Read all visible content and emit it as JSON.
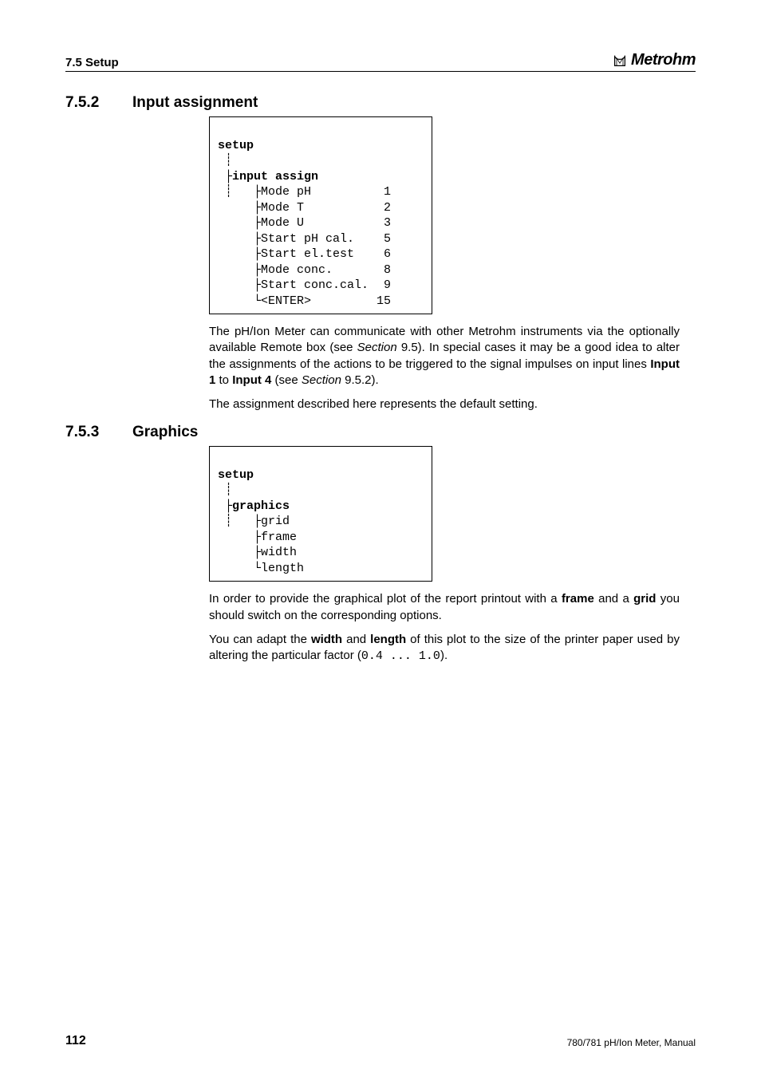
{
  "header": {
    "left": "7.5 Setup",
    "brand": "Metrohm"
  },
  "sections": [
    {
      "num": "7.5.2",
      "title": "Input assignment",
      "tree": {
        "root": "setup",
        "branch": "input assign",
        "items": [
          {
            "label": "Mode pH",
            "val": "1"
          },
          {
            "label": "Mode T",
            "val": "2"
          },
          {
            "label": "Mode U",
            "val": "3"
          },
          {
            "label": "Start pH cal.",
            "val": "5"
          },
          {
            "label": "Start el.test",
            "val": "6"
          },
          {
            "label": "Mode conc.",
            "val": "8"
          },
          {
            "label": "Start conc.cal.",
            "val": "9"
          },
          {
            "label": "<ENTER>",
            "val": "15"
          }
        ]
      },
      "paras": [
        [
          {
            "t": "The pH/Ion Meter can communicate with other Metrohm instruments via the optionally available Remote box (see "
          },
          {
            "t": "Section",
            "cls": "italic"
          },
          {
            "t": " 9.5). In special cases it may be a good idea to alter the assignments of the actions to be triggered to the signal impulses on input lines "
          },
          {
            "t": "Input 1",
            "cls": "bold"
          },
          {
            "t": " to "
          },
          {
            "t": "Input 4",
            "cls": "bold"
          },
          {
            "t": " (see "
          },
          {
            "t": "Section",
            "cls": "italic"
          },
          {
            "t": " 9.5.2)."
          }
        ],
        [
          {
            "t": "The assignment described here represents the default setting."
          }
        ]
      ]
    },
    {
      "num": "7.5.3",
      "title": "Graphics",
      "tree": {
        "root": "setup",
        "branch": "graphics",
        "items": [
          {
            "label": "grid"
          },
          {
            "label": "frame"
          },
          {
            "label": "width"
          },
          {
            "label": "length"
          }
        ]
      },
      "paras": [
        [
          {
            "t": "In order to provide the graphical plot of the report printout with a "
          },
          {
            "t": "frame",
            "cls": "bold"
          },
          {
            "t": " and a "
          },
          {
            "t": "grid",
            "cls": "bold"
          },
          {
            "t": " you should switch on the corresponding options."
          }
        ],
        [
          {
            "t": "You can adapt the "
          },
          {
            "t": "width",
            "cls": "bold"
          },
          {
            "t": " and "
          },
          {
            "t": "length",
            "cls": "bold"
          },
          {
            "t": " of this plot to the size of the printer paper used by altering the particular factor ("
          },
          {
            "t": "0.4 ... 1.0",
            "cls": "mono"
          },
          {
            "t": ")."
          }
        ]
      ]
    }
  ],
  "footer": {
    "page": "112",
    "right": "780/781 pH/Ion Meter, Manual"
  }
}
